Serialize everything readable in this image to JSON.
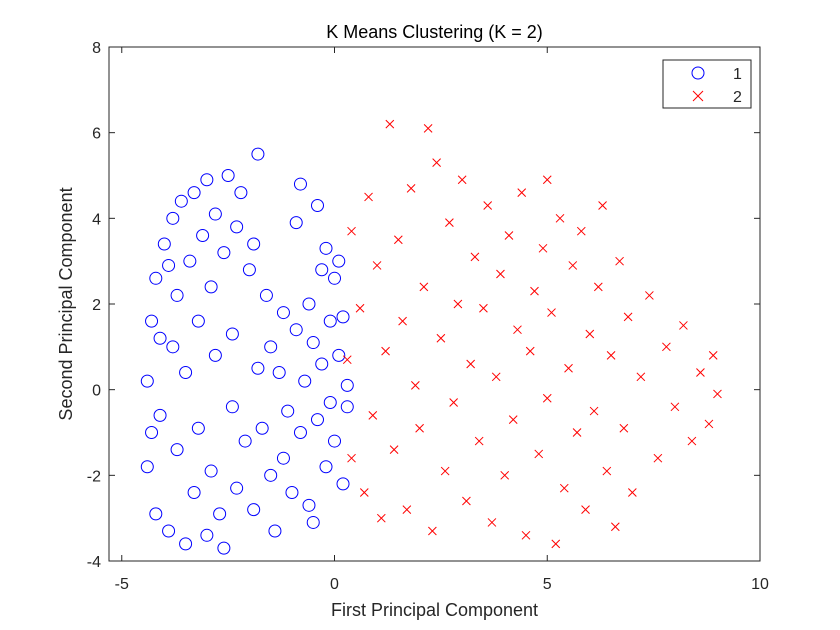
{
  "chart_data": {
    "type": "scatter",
    "title": "K Means Clustering (K = 2)",
    "xlabel": "First Principal Component",
    "ylabel": "Second Principal Component",
    "xlim": [
      -5.3,
      10
    ],
    "ylim": [
      -4,
      8
    ],
    "xticks": [
      -5,
      0,
      5,
      10
    ],
    "yticks": [
      -4,
      -2,
      0,
      2,
      4,
      6,
      8
    ],
    "xtick_labels": [
      "-5",
      "0",
      "5",
      "10"
    ],
    "ytick_labels": [
      "-4",
      "-2",
      "0",
      "2",
      "4",
      "6",
      "8"
    ],
    "grid": false,
    "legend_position": "top-right",
    "series": [
      {
        "name": "1",
        "marker": "circle",
        "color": "#0000ff",
        "points": [
          [
            -4.4,
            -1.8
          ],
          [
            -4.4,
            0.2
          ],
          [
            -4.3,
            1.6
          ],
          [
            -4.2,
            -2.9
          ],
          [
            -4.2,
            2.6
          ],
          [
            -4.1,
            -0.6
          ],
          [
            -4.0,
            3.4
          ],
          [
            -3.9,
            -3.3
          ],
          [
            -3.8,
            1.0
          ],
          [
            -3.8,
            4.0
          ],
          [
            -3.7,
            -1.4
          ],
          [
            -3.7,
            2.2
          ],
          [
            -3.6,
            4.4
          ],
          [
            -3.5,
            -3.6
          ],
          [
            -3.5,
            0.4
          ],
          [
            -3.4,
            3.0
          ],
          [
            -3.3,
            -2.4
          ],
          [
            -3.3,
            4.6
          ],
          [
            -3.2,
            1.6
          ],
          [
            -3.2,
            -0.9
          ],
          [
            -3.1,
            3.6
          ],
          [
            -3.0,
            -3.4
          ],
          [
            -3.0,
            4.9
          ],
          [
            -2.9,
            2.4
          ],
          [
            -2.9,
            -1.9
          ],
          [
            -2.8,
            0.8
          ],
          [
            -2.8,
            4.1
          ],
          [
            -2.7,
            -2.9
          ],
          [
            -2.6,
            3.2
          ],
          [
            -2.6,
            -3.7
          ],
          [
            -2.5,
            5.0
          ],
          [
            -2.4,
            1.3
          ],
          [
            -2.4,
            -0.4
          ],
          [
            -2.3,
            3.8
          ],
          [
            -2.3,
            -2.3
          ],
          [
            -2.2,
            4.6
          ],
          [
            -2.1,
            -1.2
          ],
          [
            -2.0,
            2.8
          ],
          [
            -1.9,
            -2.8
          ],
          [
            -1.9,
            3.4
          ],
          [
            -1.8,
            5.5
          ],
          [
            -1.8,
            0.5
          ],
          [
            -1.7,
            -0.9
          ],
          [
            -1.6,
            2.2
          ],
          [
            -1.5,
            -2.0
          ],
          [
            -1.5,
            1.0
          ],
          [
            -1.4,
            -3.3
          ],
          [
            -1.3,
            0.4
          ],
          [
            -1.2,
            -1.6
          ],
          [
            -1.2,
            1.8
          ],
          [
            -1.1,
            -0.5
          ],
          [
            -1.0,
            -2.4
          ],
          [
            -0.9,
            1.4
          ],
          [
            -0.9,
            3.9
          ],
          [
            -0.8,
            -1.0
          ],
          [
            -0.8,
            4.8
          ],
          [
            -0.7,
            0.2
          ],
          [
            -0.6,
            -2.7
          ],
          [
            -0.6,
            2.0
          ],
          [
            -0.5,
            1.1
          ],
          [
            -0.5,
            -3.1
          ],
          [
            -0.4,
            4.3
          ],
          [
            -0.4,
            -0.7
          ],
          [
            -0.3,
            2.8
          ],
          [
            -0.3,
            0.6
          ],
          [
            -0.2,
            -1.8
          ],
          [
            -0.2,
            3.3
          ],
          [
            -0.1,
            1.6
          ],
          [
            -0.1,
            -0.3
          ],
          [
            0.0,
            2.6
          ],
          [
            0.0,
            -1.2
          ],
          [
            0.1,
            0.8
          ],
          [
            0.1,
            3.0
          ],
          [
            0.2,
            -2.2
          ],
          [
            0.2,
            1.7
          ],
          [
            0.3,
            -0.4
          ],
          [
            0.3,
            0.1
          ],
          [
            -4.3,
            -1.0
          ],
          [
            -4.1,
            1.2
          ],
          [
            -3.9,
            2.9
          ]
        ]
      },
      {
        "name": "2",
        "marker": "x",
        "color": "#ff0000",
        "points": [
          [
            0.3,
            0.7
          ],
          [
            0.4,
            -1.6
          ],
          [
            0.4,
            3.7
          ],
          [
            0.6,
            1.9
          ],
          [
            0.7,
            -2.4
          ],
          [
            0.8,
            4.5
          ],
          [
            0.9,
            -0.6
          ],
          [
            1.0,
            2.9
          ],
          [
            1.1,
            -3.0
          ],
          [
            1.2,
            0.9
          ],
          [
            1.3,
            6.2
          ],
          [
            1.4,
            -1.4
          ],
          [
            1.5,
            3.5
          ],
          [
            1.6,
            1.6
          ],
          [
            1.7,
            -2.8
          ],
          [
            1.8,
            4.7
          ],
          [
            1.9,
            0.1
          ],
          [
            2.0,
            -0.9
          ],
          [
            2.1,
            2.4
          ],
          [
            2.2,
            6.1
          ],
          [
            2.3,
            -3.3
          ],
          [
            2.4,
            5.3
          ],
          [
            2.5,
            1.2
          ],
          [
            2.6,
            -1.9
          ],
          [
            2.7,
            3.9
          ],
          [
            2.8,
            -0.3
          ],
          [
            2.9,
            2.0
          ],
          [
            3.0,
            4.9
          ],
          [
            3.1,
            -2.6
          ],
          [
            3.2,
            0.6
          ],
          [
            3.3,
            3.1
          ],
          [
            3.4,
            -1.2
          ],
          [
            3.5,
            1.9
          ],
          [
            3.6,
            4.3
          ],
          [
            3.7,
            -3.1
          ],
          [
            3.8,
            0.3
          ],
          [
            3.9,
            2.7
          ],
          [
            4.0,
            -2.0
          ],
          [
            4.1,
            3.6
          ],
          [
            4.2,
            -0.7
          ],
          [
            4.3,
            1.4
          ],
          [
            4.4,
            4.6
          ],
          [
            4.5,
            -3.4
          ],
          [
            4.6,
            0.9
          ],
          [
            4.7,
            2.3
          ],
          [
            4.8,
            -1.5
          ],
          [
            4.9,
            3.3
          ],
          [
            5.0,
            -0.2
          ],
          [
            5.1,
            1.8
          ],
          [
            5.2,
            -3.6
          ],
          [
            5.3,
            4.0
          ],
          [
            5.4,
            -2.3
          ],
          [
            5.5,
            0.5
          ],
          [
            5.6,
            2.9
          ],
          [
            5.7,
            -1.0
          ],
          [
            5.8,
            3.7
          ],
          [
            5.9,
            -2.8
          ],
          [
            6.0,
            1.3
          ],
          [
            6.1,
            -0.5
          ],
          [
            6.2,
            2.4
          ],
          [
            6.3,
            4.3
          ],
          [
            6.4,
            -1.9
          ],
          [
            6.5,
            0.8
          ],
          [
            6.6,
            -3.2
          ],
          [
            6.7,
            3.0
          ],
          [
            6.8,
            -0.9
          ],
          [
            6.9,
            1.7
          ],
          [
            7.0,
            -2.4
          ],
          [
            7.2,
            0.3
          ],
          [
            7.4,
            2.2
          ],
          [
            7.6,
            -1.6
          ],
          [
            7.8,
            1.0
          ],
          [
            8.0,
            -0.4
          ],
          [
            8.2,
            1.5
          ],
          [
            8.4,
            -1.2
          ],
          [
            8.6,
            0.4
          ],
          [
            8.8,
            -0.8
          ],
          [
            9.0,
            -0.1
          ],
          [
            8.9,
            0.8
          ],
          [
            5.0,
            4.9
          ]
        ]
      }
    ]
  }
}
